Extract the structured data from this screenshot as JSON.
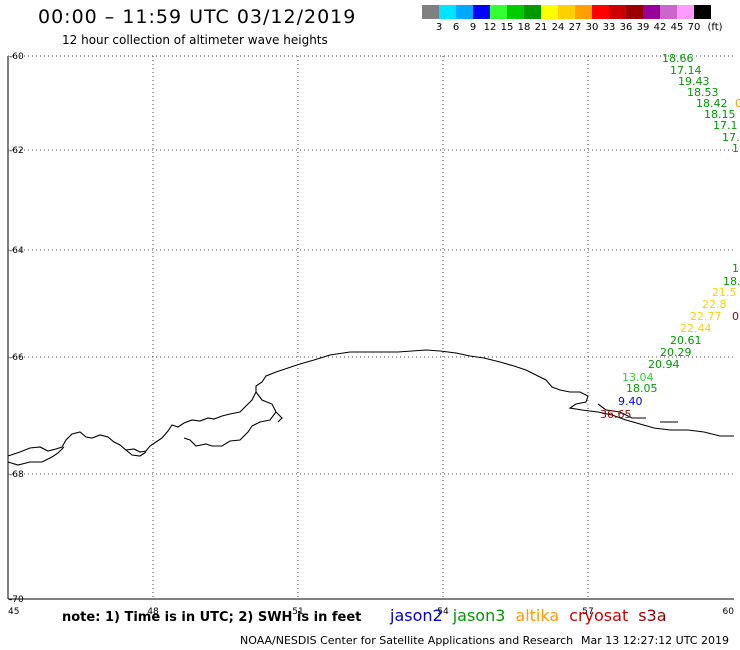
{
  "header": {
    "title": "00:00 – 11:59 UTC 03/12/2019",
    "subtitle": "12 hour collection of altimeter wave heights"
  },
  "legend": {
    "unit": "(ft)",
    "items": [
      {
        "label": "",
        "color": "#808080"
      },
      {
        "label": "3",
        "color": "#00e5ff"
      },
      {
        "label": "6",
        "color": "#00a8ff"
      },
      {
        "label": "9",
        "color": "#0000ff"
      },
      {
        "label": "12",
        "color": "#33ff33"
      },
      {
        "label": "15",
        "color": "#00cc00"
      },
      {
        "label": "18",
        "color": "#009900"
      },
      {
        "label": "21",
        "color": "#ffff00"
      },
      {
        "label": "24",
        "color": "#ffd000"
      },
      {
        "label": "27",
        "color": "#ffa000"
      },
      {
        "label": "30",
        "color": "#ff0000"
      },
      {
        "label": "33",
        "color": "#cc0000"
      },
      {
        "label": "36",
        "color": "#990000"
      },
      {
        "label": "39",
        "color": "#990099"
      },
      {
        "label": "42",
        "color": "#cc66cc"
      },
      {
        "label": "45",
        "color": "#ff99ff"
      },
      {
        "label": "70",
        "color": "#000000"
      }
    ]
  },
  "axes": {
    "lat_labels": [
      "-60",
      "-62",
      "-64",
      "-66",
      "-68",
      "-70"
    ],
    "lon_labels": [
      "45",
      "48",
      "51",
      "54",
      "57",
      "60"
    ]
  },
  "swh_points": [
    {
      "text": "18.66",
      "color": "#009900"
    },
    {
      "text": "17.14",
      "color": "#009900"
    },
    {
      "text": "19.43",
      "color": "#009900"
    },
    {
      "text": "18.53",
      "color": "#009900"
    },
    {
      "text": "18.42",
      "color": "#009900"
    },
    {
      "text": "0",
      "color": "#ffa000"
    },
    {
      "text": "18.15",
      "color": "#009900"
    },
    {
      "text": "17.1",
      "color": "#009900"
    },
    {
      "text": "17.",
      "color": "#009900"
    },
    {
      "text": "1",
      "color": "#009900"
    },
    {
      "text": "1",
      "color": "#009900"
    },
    {
      "text": "18.",
      "color": "#009900"
    },
    {
      "text": "21.5",
      "color": "#ffd000"
    },
    {
      "text": "22.8",
      "color": "#ffd000"
    },
    {
      "text": "22.77",
      "color": "#ffd000"
    },
    {
      "text": "0",
      "color": "#990000"
    },
    {
      "text": "22.44",
      "color": "#ffd000"
    },
    {
      "text": "20.61",
      "color": "#009900"
    },
    {
      "text": "20.29",
      "color": "#009900"
    },
    {
      "text": "20.94",
      "color": "#009900"
    },
    {
      "text": "13.04",
      "color": "#33cc33"
    },
    {
      "text": "18.05",
      "color": "#009900"
    },
    {
      "text": "9.40",
      "color": "#0000ff"
    },
    {
      "text": "36.65",
      "color": "#990000"
    }
  ],
  "footer": {
    "note": "note: 1) Time is in UTC; 2) SWH is in feet",
    "satellites": [
      {
        "name": "jason2",
        "color": "#0000cc"
      },
      {
        "name": "jason3",
        "color": "#009900"
      },
      {
        "name": "altika",
        "color": "#ff9900"
      },
      {
        "name": "cryosat",
        "color": "#cc0000"
      },
      {
        "name": "s3a",
        "color": "#990000"
      }
    ],
    "credit": "NOAA/NESDIS Center for Satellite Applications and Research",
    "timestamp": "Mar 13 12:27:12 UTC 2019"
  }
}
